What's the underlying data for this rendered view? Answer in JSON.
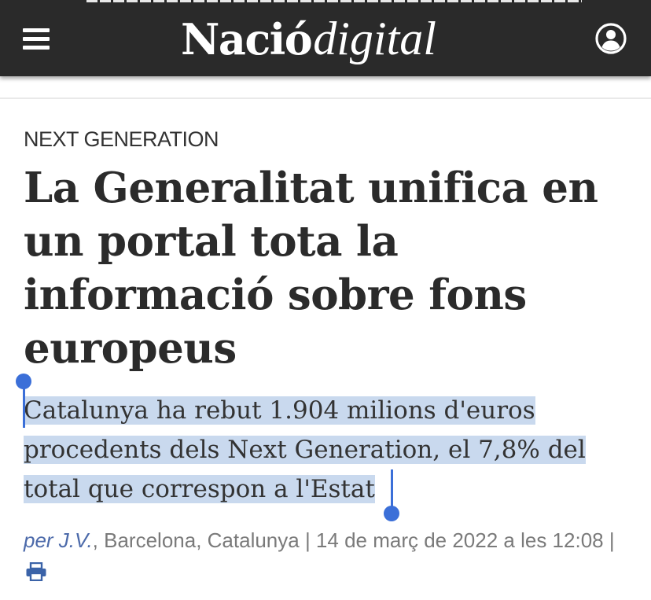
{
  "header": {
    "logo_bold": "Nació",
    "logo_italic": "digital",
    "brand_dot_color": "#d6322f",
    "menu_icon": "hamburger-menu-icon",
    "user_icon": "user-account-icon"
  },
  "article": {
    "category": "NEXT GENERATION",
    "headline": "La Generalitat unifica en un portal tota la informació sobre fons europeus",
    "subtitle": "Catalunya ha rebut 1.904 milions d'euros procedents dels Next Generation, el 7,8% del total que correspon a l'Estat",
    "subtitle_selected": true,
    "byline": {
      "author": "per J.V.",
      "location_date": ", Barcelona, Catalunya | 14 de març de 2022 a les 12:08 |",
      "print_icon": "print-icon"
    }
  },
  "colors": {
    "header_bg": "#2a2a2a",
    "selection": "#c9d9ee",
    "selection_handle": "#3b6fd8",
    "author_link": "#4c6aaa"
  }
}
